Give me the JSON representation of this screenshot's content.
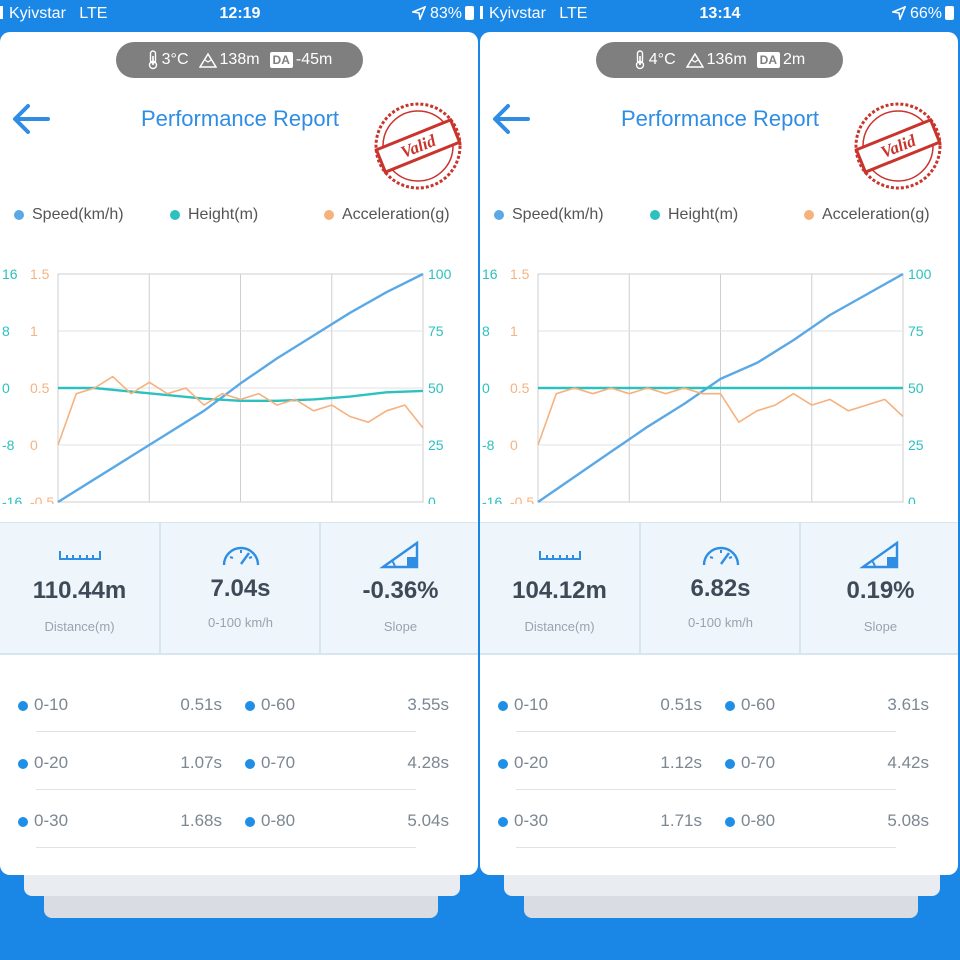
{
  "colors": {
    "speed": "#5aa9e6",
    "height": "#2cc1bf",
    "acceleration": "#f6b27e",
    "accent": "#2f8de4",
    "stamp": "#c9342c"
  },
  "legend": [
    "Speed(km/h)",
    "Height(m)",
    "Acceleration(g)"
  ],
  "axes": {
    "height_ticks": [
      "16",
      "8",
      "0",
      "-8",
      "-16"
    ],
    "accel_ticks": [
      "1.5",
      "1",
      "0.5",
      "0",
      "-0.5"
    ],
    "speed_ticks": [
      "100",
      "75",
      "50",
      "25",
      "0"
    ]
  },
  "panels": [
    {
      "status": {
        "carrier": "Kyivstar",
        "network": "LTE",
        "time": "12:19",
        "battery": "83%"
      },
      "env": {
        "temp": "3°C",
        "altitude": "138m",
        "da_label": "DA",
        "da": "-45m"
      },
      "title": "Performance Report",
      "stamp_text": "Valid",
      "stats": [
        {
          "value": "110.44m",
          "label": "Distance(m)",
          "icon": "ruler-icon"
        },
        {
          "value": "7.04s",
          "label": "0-100 km/h",
          "icon": "speedometer-icon"
        },
        {
          "value": "-0.36%",
          "label": "Slope",
          "icon": "slope-icon"
        }
      ],
      "times": [
        {
          "l1": "0-10",
          "v1": "0.51s",
          "l2": "0-60",
          "v2": "3.55s"
        },
        {
          "l1": "0-20",
          "v1": "1.07s",
          "l2": "0-70",
          "v2": "4.28s"
        },
        {
          "l1": "0-30",
          "v1": "1.68s",
          "l2": "0-80",
          "v2": "5.04s"
        }
      ],
      "chart_data": {
        "type": "line",
        "series": [
          {
            "name": "Speed(km/h)",
            "axis": "right",
            "x": [
              0,
              0.1,
              0.2,
              0.3,
              0.4,
              0.5,
              0.6,
              0.7,
              0.8,
              0.9,
              1.0
            ],
            "values": [
              0,
              10,
              20,
              30,
              40,
              52,
              63,
              73,
              83,
              92,
              100
            ]
          },
          {
            "name": "Height(m)",
            "axis": "left",
            "x": [
              0,
              0.1,
              0.2,
              0.3,
              0.4,
              0.5,
              0.6,
              0.7,
              0.8,
              0.9,
              1.0
            ],
            "values": [
              0,
              0,
              -0.5,
              -1,
              -1.5,
              -1.8,
              -1.8,
              -1.6,
              -1.2,
              -0.6,
              -0.4
            ]
          },
          {
            "name": "Acceleration(g)",
            "axis": "left2",
            "x": [
              0,
              0.05,
              0.1,
              0.15,
              0.2,
              0.25,
              0.3,
              0.35,
              0.4,
              0.45,
              0.5,
              0.55,
              0.6,
              0.65,
              0.7,
              0.75,
              0.8,
              0.85,
              0.9,
              0.95,
              1.0
            ],
            "values": [
              0,
              0.45,
              0.5,
              0.6,
              0.45,
              0.55,
              0.45,
              0.5,
              0.35,
              0.45,
              0.4,
              0.45,
              0.35,
              0.4,
              0.3,
              0.35,
              0.25,
              0.2,
              0.3,
              0.35,
              0.15
            ]
          }
        ],
        "left_range": [
          -16,
          16
        ],
        "left2_range": [
          -0.5,
          1.5
        ],
        "right_range": [
          0,
          100
        ],
        "grid": true
      }
    },
    {
      "status": {
        "carrier": "Kyivstar",
        "network": "LTE",
        "time": "13:14",
        "battery": "66%"
      },
      "env": {
        "temp": "4°C",
        "altitude": "136m",
        "da_label": "DA",
        "da": "2m"
      },
      "title": "Performance Report",
      "stamp_text": "Valid",
      "stats": [
        {
          "value": "104.12m",
          "label": "Distance(m)",
          "icon": "ruler-icon"
        },
        {
          "value": "6.82s",
          "label": "0-100 km/h",
          "icon": "speedometer-icon"
        },
        {
          "value": "0.19%",
          "label": "Slope",
          "icon": "slope-icon"
        }
      ],
      "times": [
        {
          "l1": "0-10",
          "v1": "0.51s",
          "l2": "0-60",
          "v2": "3.61s"
        },
        {
          "l1": "0-20",
          "v1": "1.12s",
          "l2": "0-70",
          "v2": "4.42s"
        },
        {
          "l1": "0-30",
          "v1": "1.71s",
          "l2": "0-80",
          "v2": "5.08s"
        }
      ],
      "chart_data": {
        "type": "line",
        "series": [
          {
            "name": "Speed(km/h)",
            "axis": "right",
            "x": [
              0,
              0.1,
              0.2,
              0.3,
              0.4,
              0.5,
              0.6,
              0.7,
              0.8,
              0.9,
              1.0
            ],
            "values": [
              0,
              11,
              22,
              33,
              43,
              54,
              61,
              71,
              82,
              91,
              100
            ]
          },
          {
            "name": "Height(m)",
            "axis": "left",
            "x": [
              0,
              0.1,
              0.2,
              0.3,
              0.4,
              0.5,
              0.6,
              0.7,
              0.8,
              0.9,
              1.0
            ],
            "values": [
              0,
              0,
              0,
              0,
              0,
              0,
              0,
              0,
              0,
              0,
              0
            ]
          },
          {
            "name": "Acceleration(g)",
            "axis": "left2",
            "x": [
              0,
              0.05,
              0.1,
              0.15,
              0.2,
              0.25,
              0.3,
              0.35,
              0.4,
              0.45,
              0.5,
              0.55,
              0.6,
              0.65,
              0.7,
              0.75,
              0.8,
              0.85,
              0.9,
              0.95,
              1.0
            ],
            "values": [
              0,
              0.45,
              0.5,
              0.45,
              0.5,
              0.45,
              0.5,
              0.45,
              0.5,
              0.45,
              0.45,
              0.2,
              0.3,
              0.35,
              0.45,
              0.35,
              0.4,
              0.3,
              0.35,
              0.4,
              0.25
            ]
          }
        ],
        "left_range": [
          -16,
          16
        ],
        "left2_range": [
          -0.5,
          1.5
        ],
        "right_range": [
          0,
          100
        ],
        "grid": true
      }
    }
  ]
}
